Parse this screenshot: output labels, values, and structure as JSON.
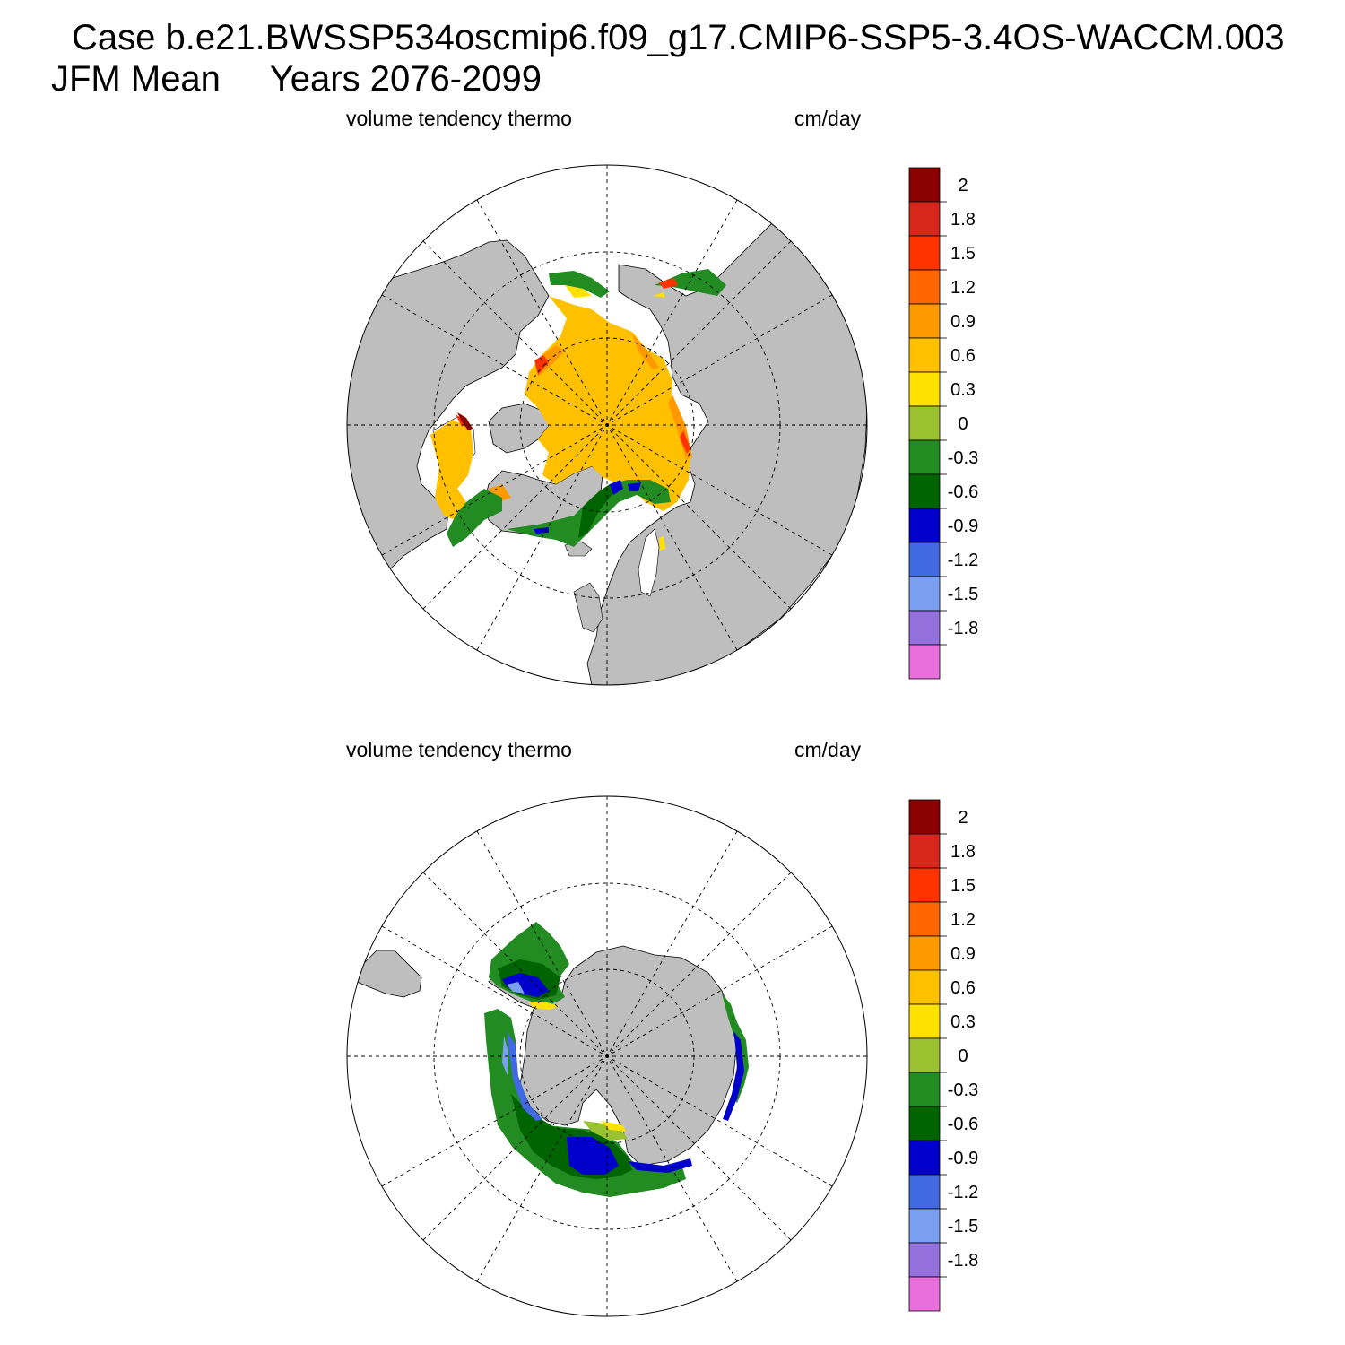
{
  "title": {
    "line1": "Case b.e21.BWSSP534oscmip6.f09_g17.CMIP6-SSP5-3.4OS-WACCM.003",
    "line2": "JFM Mean     Years 2076-2099"
  },
  "panels": [
    {
      "id": "north",
      "hemisphere": "Northern Hemisphere polar stereographic",
      "left_label": "volume tendency thermo",
      "right_label": "cm/day"
    },
    {
      "id": "south",
      "hemisphere": "Southern Hemisphere polar stereographic",
      "left_label": "volume tendency thermo",
      "right_label": "cm/day"
    }
  ],
  "colorbar": {
    "labels": [
      "2",
      "1.8",
      "1.5",
      "1.2",
      "0.9",
      "0.6",
      "0.3",
      "0",
      "-0.3",
      "-0.6",
      "-0.9",
      "-1.2",
      "-1.5",
      "-1.8"
    ],
    "colors_top_to_bottom": [
      "#8b0000",
      "#d9261c",
      "#ff3300",
      "#ff6600",
      "#ff9900",
      "#ffc000",
      "#ffe100",
      "#9ac12f",
      "#228b22",
      "#006400",
      "#0000cd",
      "#4169e1",
      "#7b9ff1",
      "#9370db",
      "#e86fdc"
    ]
  },
  "colors": {
    "land": "#bebebe",
    "ocean": "#ffffff",
    "grid": "#000000"
  }
}
